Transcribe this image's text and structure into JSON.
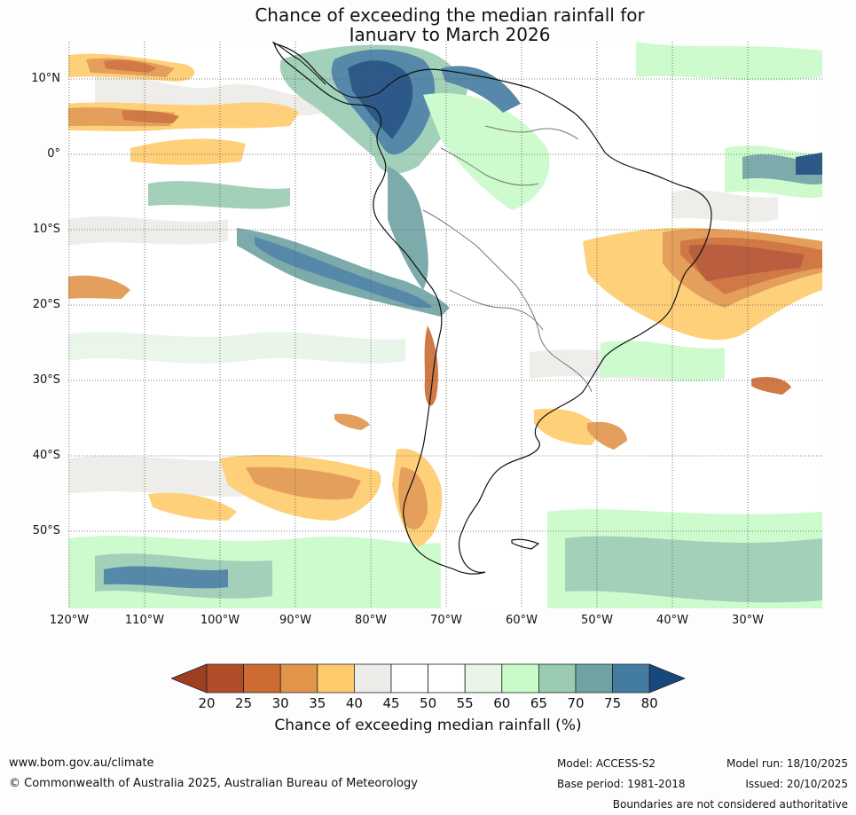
{
  "title_line1": "Chance of exceeding the median rainfall for",
  "title_line2": "January to March 2026",
  "map": {
    "lat_labels": [
      "10°N",
      "0°",
      "10°S",
      "20°S",
      "30°S",
      "40°S",
      "50°S"
    ],
    "lon_labels": [
      "120°W",
      "110°W",
      "100°W",
      "90°W",
      "80°W",
      "70°W",
      "60°W",
      "50°W",
      "40°W",
      "30°W"
    ]
  },
  "colorbar": {
    "ticks": [
      "20",
      "25",
      "30",
      "35",
      "40",
      "45",
      "50",
      "55",
      "60",
      "65",
      "70",
      "75",
      "80"
    ],
    "colors": [
      "#9e3f22",
      "#b24d2a",
      "#cc6b34",
      "#e0954a",
      "#fecb6b",
      "#eeece8",
      "#ffffff",
      "#ffffff",
      "#e8f5e8",
      "#c8fbc8",
      "#99ccb2",
      "#6fa3a3",
      "#437ca0",
      "#17487c"
    ],
    "label": "Chance of exceeding median rainfall (%)"
  },
  "footer": {
    "website": "www.bom.gov.au/climate",
    "copyright": "© Commonwealth of Australia 2025, Australian Bureau of Meteorology",
    "model": "Model: ACCESS-S2",
    "base_period": "Base period: 1981-2018",
    "model_run": "Model run: 18/10/2025",
    "issued": "Issued: 20/10/2025",
    "disclaimer": "Boundaries are not considered authoritative"
  }
}
